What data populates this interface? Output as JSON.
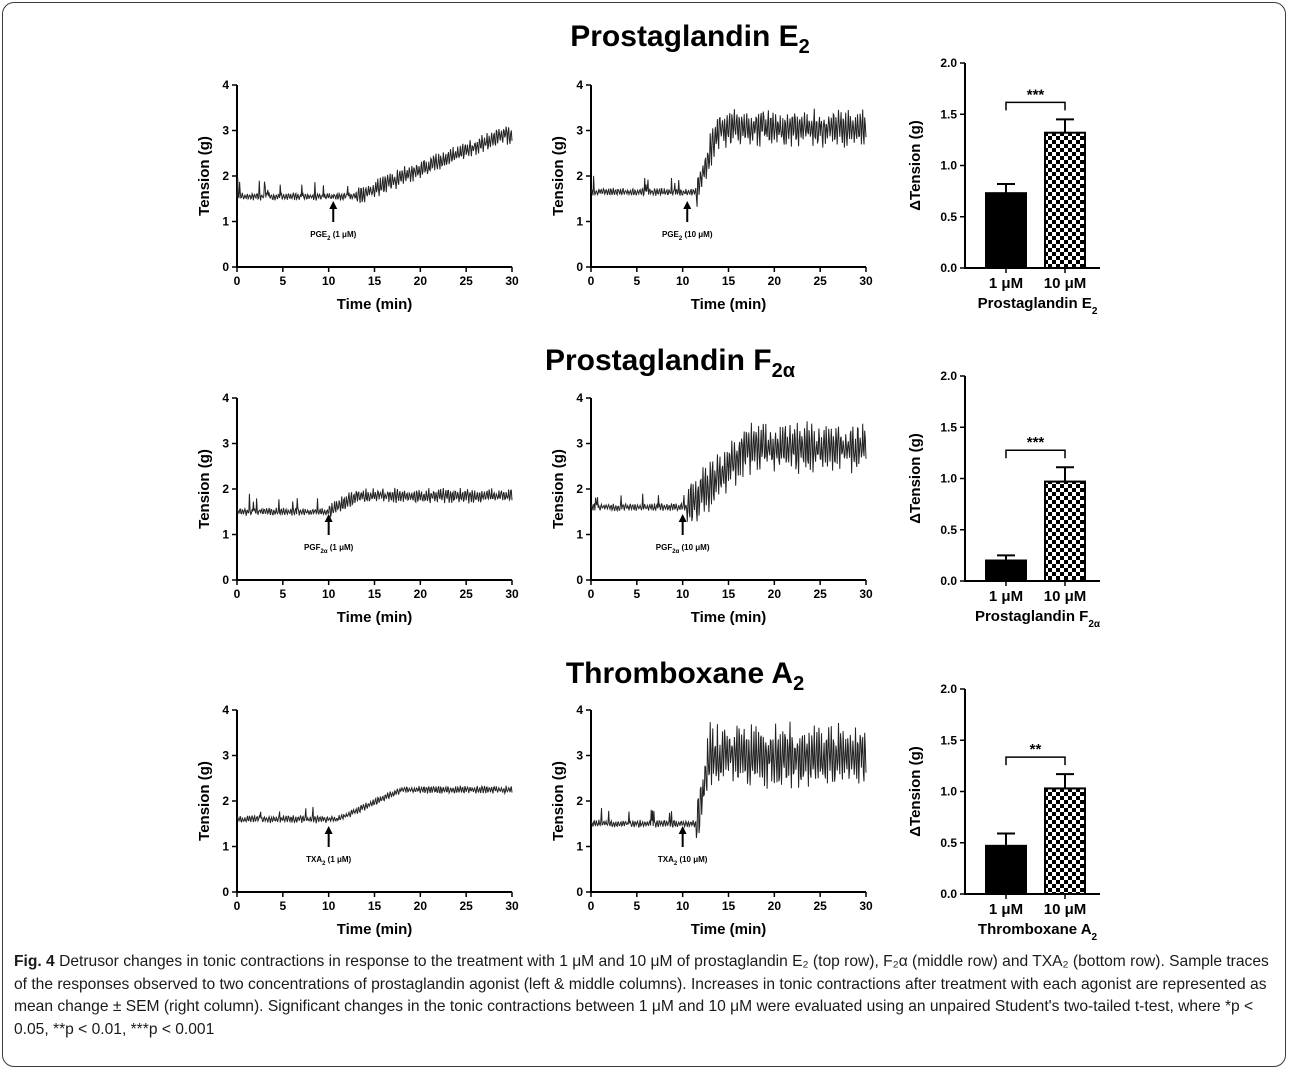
{
  "row_titles": [
    {
      "text": "Prostaglandin E",
      "sub": "2"
    },
    {
      "text": "Prostaglandin F",
      "sub": "2α"
    },
    {
      "text": "Thromboxane A",
      "sub": "2"
    }
  ],
  "chart_data": [
    {
      "type": "line",
      "row": 0,
      "col": 0,
      "xlabel": "Time (min)",
      "ylabel": "Tension (g)",
      "xlim": [
        0,
        30
      ],
      "ylim": [
        0,
        4
      ],
      "xticks": [
        "0",
        "5",
        "10",
        "15",
        "20",
        "25",
        "30"
      ],
      "yticks": [
        "0",
        "1",
        "2",
        "3",
        "4"
      ],
      "annotation": {
        "text": "PGE",
        "sub": "2",
        "suffix": " (1 μM)",
        "x": 10.5
      },
      "baseline": 1.55,
      "final": 2.9,
      "onset": 13,
      "rise_end": 29,
      "osc": 0.15
    },
    {
      "type": "line",
      "row": 0,
      "col": 1,
      "xlabel": "Time (min)",
      "ylabel": "Tension (g)",
      "xlim": [
        0,
        30
      ],
      "ylim": [
        0,
        4
      ],
      "xticks": [
        "0",
        "5",
        "10",
        "15",
        "20",
        "25",
        "30"
      ],
      "yticks": [
        "0",
        "1",
        "2",
        "3",
        "4"
      ],
      "annotation": {
        "text": "PGE",
        "sub": "2",
        "suffix": " (10 μM)",
        "x": 10.5
      },
      "baseline": 1.65,
      "final": 3.05,
      "onset": 11.5,
      "rise_end": 14,
      "osc": 0.3
    },
    {
      "type": "line",
      "row": 1,
      "col": 0,
      "xlabel": "Time (min)",
      "ylabel": "Tension (g)",
      "xlim": [
        0,
        30
      ],
      "ylim": [
        0,
        4
      ],
      "xticks": [
        "0",
        "5",
        "10",
        "15",
        "20",
        "25",
        "30"
      ],
      "yticks": [
        "0",
        "1",
        "2",
        "3",
        "4"
      ],
      "annotation": {
        "text": "PGF",
        "sub": "2α",
        "suffix": " (1 μM)",
        "x": 10
      },
      "baseline": 1.5,
      "final": 1.85,
      "onset": 10,
      "rise_end": 13,
      "osc": 0.12
    },
    {
      "type": "line",
      "row": 1,
      "col": 1,
      "xlabel": "Time (min)",
      "ylabel": "Tension (g)",
      "xlim": [
        0,
        30
      ],
      "ylim": [
        0,
        4
      ],
      "xticks": [
        "0",
        "5",
        "10",
        "15",
        "20",
        "25",
        "30"
      ],
      "yticks": [
        "0",
        "1",
        "2",
        "3",
        "4"
      ],
      "annotation": {
        "text": "PGF",
        "sub": "2α",
        "suffix": " (10 μM)",
        "x": 10
      },
      "baseline": 1.6,
      "final": 2.9,
      "onset": 10.5,
      "rise_end": 17,
      "osc": 0.4
    },
    {
      "type": "line",
      "row": 2,
      "col": 0,
      "xlabel": "Time (min)",
      "ylabel": "Tension (g)",
      "xlim": [
        0,
        30
      ],
      "ylim": [
        0,
        4
      ],
      "xticks": [
        "0",
        "5",
        "10",
        "15",
        "20",
        "25",
        "30"
      ],
      "yticks": [
        "0",
        "1",
        "2",
        "3",
        "4"
      ],
      "annotation": {
        "text": "TXA",
        "sub": "2",
        "suffix": " (1 μM)",
        "x": 10
      },
      "baseline": 1.6,
      "final": 2.25,
      "onset": 11,
      "rise_end": 18,
      "osc": 0.06
    },
    {
      "type": "line",
      "row": 2,
      "col": 1,
      "xlabel": "Time (min)",
      "ylabel": "Tension (g)",
      "xlim": [
        0,
        30
      ],
      "ylim": [
        0,
        4
      ],
      "xticks": [
        "0",
        "5",
        "10",
        "15",
        "20",
        "25",
        "30"
      ],
      "yticks": [
        "0",
        "1",
        "2",
        "3",
        "4"
      ],
      "annotation": {
        "text": "TXA",
        "sub": "2",
        "suffix": " (10 μM)",
        "x": 10
      },
      "baseline": 1.5,
      "final": 3.0,
      "onset": 11.5,
      "rise_end": 13,
      "osc": 0.5
    },
    {
      "type": "bar",
      "row": 0,
      "col": 2,
      "categories": [
        "1 μM",
        "10 μM"
      ],
      "values": [
        0.73,
        1.32
      ],
      "errors": [
        0.09,
        0.13
      ],
      "ylabel": "ΔTension (g)",
      "xlabel": "Prostaglandin E",
      "xlabel_sub": "2",
      "ylim": [
        0,
        2.0
      ],
      "yticks": [
        "0.0",
        "0.5",
        "1.0",
        "1.5",
        "2.0"
      ],
      "significance": "***",
      "fills": [
        "solid",
        "checkered"
      ]
    },
    {
      "type": "bar",
      "row": 1,
      "col": 2,
      "categories": [
        "1 μM",
        "10 μM"
      ],
      "values": [
        0.2,
        0.97
      ],
      "errors": [
        0.05,
        0.14
      ],
      "ylabel": "ΔTension (g)",
      "xlabel": "Prostaglandin F",
      "xlabel_sub": "2α",
      "ylim": [
        0,
        2.0
      ],
      "yticks": [
        "0.0",
        "0.5",
        "1.0",
        "1.5",
        "2.0"
      ],
      "significance": "***",
      "fills": [
        "solid",
        "checkered"
      ]
    },
    {
      "type": "bar",
      "row": 2,
      "col": 2,
      "categories": [
        "1 μM",
        "10 μM"
      ],
      "values": [
        0.47,
        1.03
      ],
      "errors": [
        0.12,
        0.14
      ],
      "ylabel": "ΔTension (g)",
      "xlabel": "Thromboxane A",
      "xlabel_sub": "2",
      "ylim": [
        0,
        2.0
      ],
      "yticks": [
        "0.0",
        "0.5",
        "1.0",
        "1.5",
        "2.0"
      ],
      "significance": "**",
      "fills": [
        "solid",
        "checkered"
      ]
    }
  ],
  "caption": {
    "label": "Fig. 4",
    "text": " Detrusor changes in tonic contractions in response to the treatment with 1 μM and 10 μM of prostaglandin E₂ (top row), F₂α (middle row) and TXA₂ (bottom row). Sample traces of the responses observed to two concentrations of prostaglandin agonist (left & middle columns). Increases in tonic contractions after treatment with each agonist are represented as mean change ± SEM (right column). Significant changes in the tonic contractions between 1 μM and 10 μM were evaluated using an unpaired Student's two-tailed t-test, where *p < 0.05, **p < 0.01, ***p < 0.001"
  }
}
